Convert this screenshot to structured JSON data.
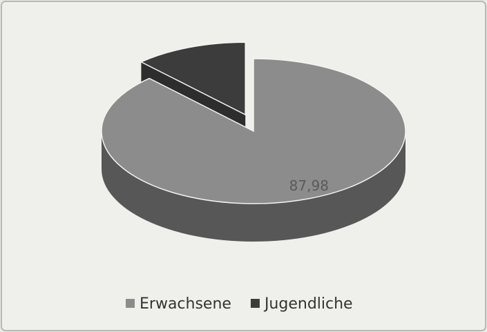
{
  "chart_data": {
    "type": "pie",
    "categories": [
      "Erwachsene",
      "Jugendliche"
    ],
    "values": [
      87.98,
      12.02
    ],
    "value_labels": [
      "87,98",
      null
    ],
    "colors": [
      "#8c8c8c",
      "#3c3c3c"
    ],
    "legend": "bottom"
  }
}
